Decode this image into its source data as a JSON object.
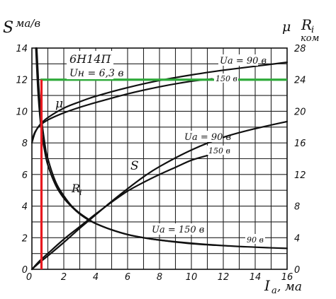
{
  "chart_data": {
    "type": "line",
    "tube": "6Н14П",
    "heater": "Uн = 6,3 в",
    "axes": {
      "x": {
        "label_main": "I",
        "label_sub": "a",
        "label_unit": ", ма",
        "range": [
          0,
          16
        ],
        "ticks": [
          "0",
          "2",
          "4",
          "6",
          "8",
          "10",
          "12",
          "14",
          "16"
        ]
      },
      "y_left": {
        "label_main": "S",
        "label_unit": "ма/в",
        "range": [
          0,
          14
        ],
        "ticks": [
          "0",
          "2",
          "4",
          "6",
          "8",
          "10",
          "12",
          "14"
        ]
      },
      "y_right": {
        "label_mu": "μ",
        "label_main": "R",
        "label_sub": "i",
        "label_unit": "ком",
        "range": [
          0,
          28
        ],
        "ticks": [
          "0",
          "4",
          "8",
          "12",
          "16",
          "20",
          "24",
          "28"
        ]
      }
    },
    "grid": true,
    "series": [
      {
        "name": "μ",
        "voltage": "Uа = 90 в",
        "axis": "right",
        "x": [
          0,
          0.2,
          0.5,
          1,
          2,
          3,
          4,
          6,
          8,
          10,
          12,
          14,
          16
        ],
        "y": [
          16.0,
          17.3,
          18.3,
          19.2,
          20.4,
          21.2,
          21.9,
          23.0,
          23.9,
          24.6,
          25.2,
          25.7,
          26.2
        ]
      },
      {
        "name": "μ",
        "voltage": "150 в",
        "axis": "right",
        "x": [
          0.05,
          0.2,
          0.5,
          1,
          2,
          3,
          4,
          6,
          8,
          10,
          11.3
        ],
        "y": [
          16.6,
          17.4,
          18.2,
          18.9,
          19.8,
          20.5,
          21.1,
          22.2,
          23.1,
          23.8,
          24.1
        ]
      },
      {
        "name": "S",
        "voltage": "Uа = 90 в",
        "axis": "left",
        "x": [
          0,
          0.5,
          1,
          2,
          3,
          4,
          5,
          6,
          7,
          8,
          10,
          12,
          14,
          16
        ],
        "y": [
          0,
          0.45,
          0.85,
          1.7,
          2.6,
          3.45,
          4.3,
          5.1,
          5.85,
          6.5,
          7.55,
          8.35,
          8.9,
          9.35
        ]
      },
      {
        "name": "S",
        "voltage": "150 в",
        "axis": "left",
        "x": [
          0,
          0.5,
          1,
          2,
          3,
          4,
          5,
          6,
          7,
          8,
          9,
          10,
          11
        ],
        "y": [
          0,
          0.55,
          1.0,
          1.9,
          2.7,
          3.5,
          4.25,
          4.95,
          5.5,
          6.0,
          6.45,
          6.9,
          7.2
        ]
      },
      {
        "name": "Ri",
        "voltage": "Uа = 150 в",
        "axis": "right",
        "x": [
          0.25,
          0.4,
          0.6,
          0.8,
          1,
          1.5,
          2,
          2.5,
          3,
          3.5,
          4,
          5,
          6,
          7,
          8,
          10,
          11.5
        ],
        "y": [
          28,
          22,
          17.5,
          15,
          13.2,
          10.6,
          9.0,
          7.9,
          7.0,
          6.3,
          5.8,
          5.0,
          4.4,
          4.0,
          3.7,
          3.25,
          3.05
        ]
      },
      {
        "name": "Ri",
        "voltage": "90 в",
        "axis": "right",
        "x": [
          0.3,
          0.5,
          0.8,
          1,
          1.5,
          2,
          2.5,
          3,
          3.5,
          4,
          5,
          6,
          7,
          8,
          10,
          12,
          14,
          16
        ],
        "y": [
          28,
          21,
          16,
          14,
          11,
          9.3,
          8.0,
          7.1,
          6.4,
          5.8,
          5.0,
          4.4,
          4.0,
          3.7,
          3.3,
          3.0,
          2.8,
          2.65
        ]
      }
    ],
    "markers": [
      {
        "type": "horizontal",
        "axis": "right",
        "value": 24,
        "color": "#2eaa3a"
      },
      {
        "type": "vertical",
        "axis": "x",
        "value": 0.6,
        "color": "#e8191f"
      }
    ],
    "annotations": {
      "mu_label": "μ",
      "s_label": "S",
      "ri_label": "R",
      "ri_label_sub": "i",
      "v90_mu": "Uа = 90 в",
      "v150_mu": "150 в",
      "v90_s": "Uа = 90 в",
      "v150_s": "150 в",
      "v150_ri": "Uа = 150 в",
      "v90_ri": "90 в"
    }
  }
}
